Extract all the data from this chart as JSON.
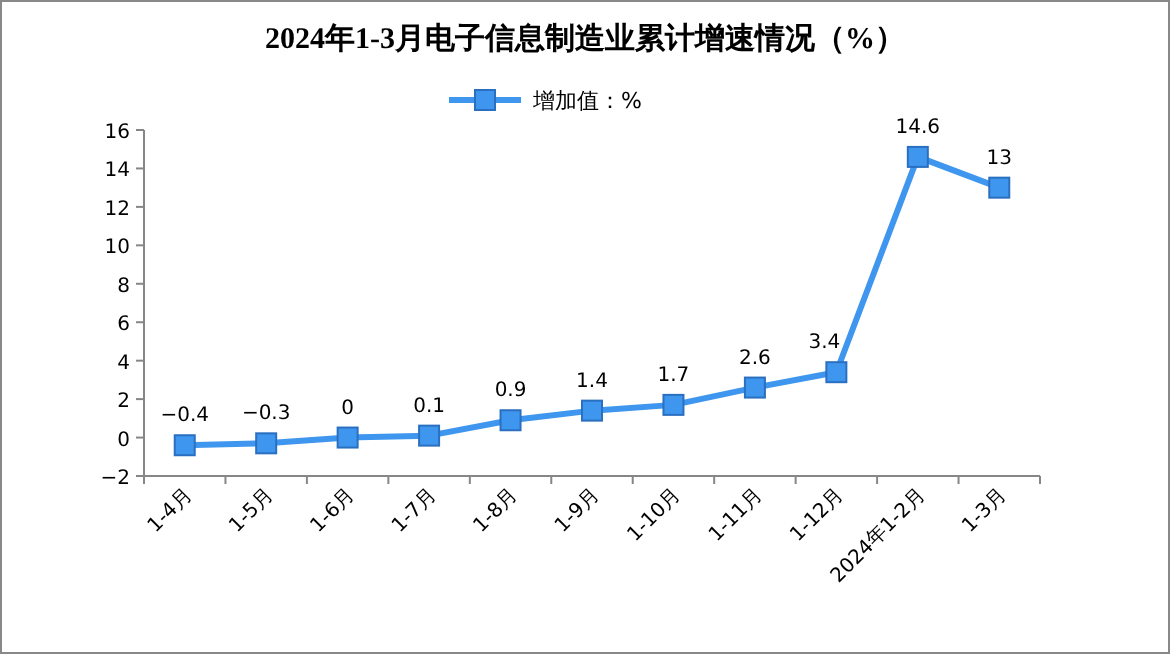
{
  "chart_data": {
    "type": "line",
    "title": "2024年1-3月电子信息制造业累计增速情况（%）",
    "categories": [
      "1-4月",
      "1-5月",
      "1-6月",
      "1-7月",
      "1-8月",
      "1-9月",
      "1-10月",
      "1-11月",
      "1-12月",
      "2024年1-2月",
      "1-3月"
    ],
    "series": [
      {
        "name": "增加值：%",
        "color": "#3f96ee",
        "values": [
          -0.4,
          -0.3,
          0,
          0.1,
          0.9,
          1.4,
          1.7,
          2.6,
          3.4,
          14.6,
          13
        ]
      }
    ],
    "ylim": [
      -2,
      16
    ],
    "yticks": [
      -2,
      0,
      2,
      4,
      6,
      8,
      10,
      12,
      14,
      16
    ],
    "data_labels": true,
    "marker": "square",
    "legend": "top",
    "grid": false
  }
}
